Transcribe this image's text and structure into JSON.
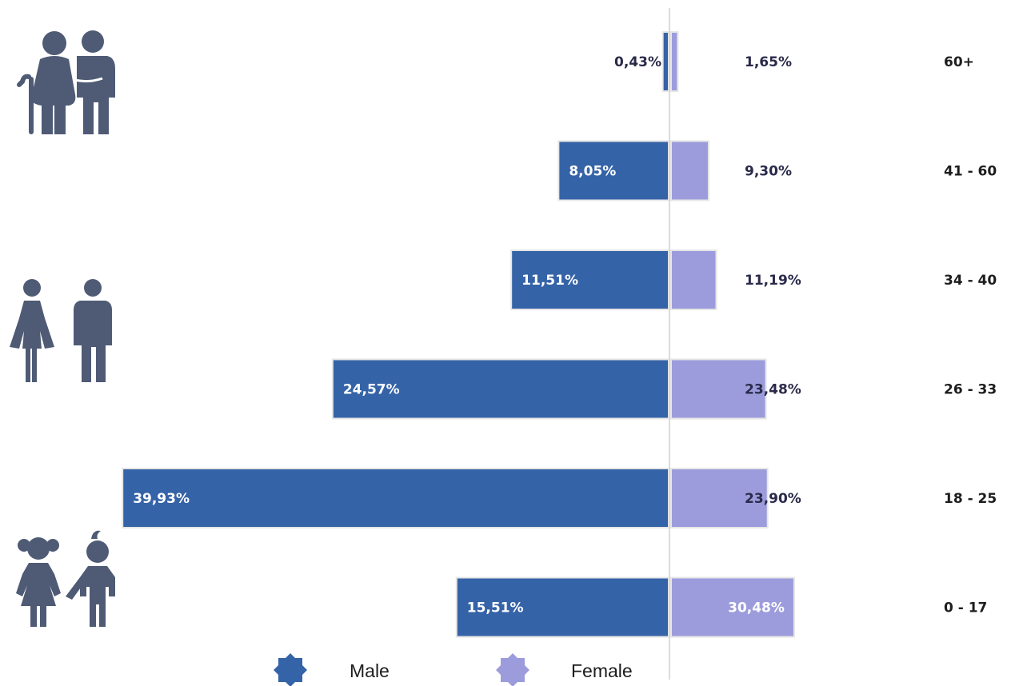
{
  "colors": {
    "male": "#3563a7",
    "female": "#9c9cdc",
    "label_dark": "#2a2a4a",
    "label_light": "#ffffff",
    "icons": "#4f5b75",
    "axis": "#cfcfcf"
  },
  "chart_data": {
    "type": "bar",
    "orientation": "horizontal",
    "categories": [
      "60+",
      "41 - 60",
      "34 - 40",
      "26 - 33",
      "18 - 25",
      "0 - 17"
    ],
    "series": [
      {
        "name": "Male",
        "values": [
          0.43,
          8.05,
          11.51,
          24.57,
          39.93,
          15.51
        ],
        "labels": [
          "0,43%",
          "8,05%",
          "11,51%",
          "24,57%",
          "39,93%",
          "15,51%"
        ]
      },
      {
        "name": "Female",
        "values": [
          1.65,
          9.3,
          11.19,
          23.48,
          23.9,
          30.48
        ],
        "labels": [
          "1,65%",
          "9,30%",
          "11,19%",
          "23,48%",
          "23,90%",
          "30,48%"
        ]
      }
    ],
    "legend": {
      "position": "bottom",
      "entries": [
        "Male",
        "Female"
      ]
    }
  },
  "icons": [
    "elderly-couple-icon",
    "adult-couple-icon",
    "children-couple-icon",
    "male-legend-icon",
    "female-legend-icon"
  ]
}
